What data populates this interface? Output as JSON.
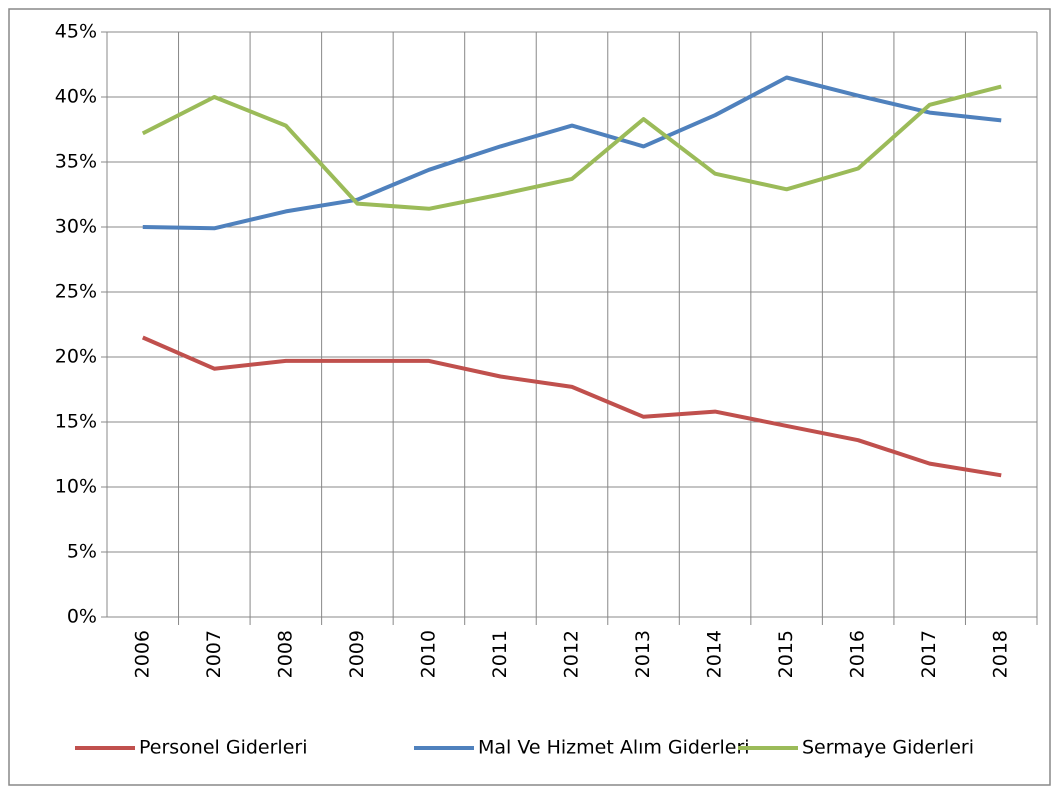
{
  "chart_data": {
    "type": "line",
    "categories": [
      "2006",
      "2007",
      "2008",
      "2009",
      "2010",
      "2011",
      "2012",
      "2013",
      "2014",
      "2015",
      "2016",
      "2017",
      "2018"
    ],
    "series": [
      {
        "name": "Personel Giderleri",
        "color": "#c0504d",
        "values": [
          21.5,
          19.1,
          19.7,
          19.7,
          19.7,
          18.5,
          17.7,
          15.4,
          15.8,
          14.7,
          13.6,
          11.8,
          10.9
        ]
      },
      {
        "name": "Mal Ve Hizmet Alım Giderleri",
        "color": "#4f81bd",
        "values": [
          30.0,
          29.9,
          31.2,
          32.1,
          34.4,
          36.2,
          37.8,
          36.2,
          38.6,
          41.5,
          40.1,
          38.8,
          38.2
        ]
      },
      {
        "name": "Sermaye Giderleri",
        "color": "#9bbb59",
        "values": [
          37.2,
          40.0,
          37.8,
          31.8,
          31.4,
          32.5,
          33.7,
          38.3,
          34.1,
          32.9,
          34.5,
          39.4,
          40.8
        ]
      }
    ],
    "ylim": [
      0,
      45
    ],
    "yticks": [
      {
        "value": 0,
        "label": "0%"
      },
      {
        "value": 5,
        "label": "5%"
      },
      {
        "value": 10,
        "label": "10%"
      },
      {
        "value": 15,
        "label": "15%"
      },
      {
        "value": 20,
        "label": "20%"
      },
      {
        "value": 25,
        "label": "25%"
      },
      {
        "value": 30,
        "label": "30%"
      },
      {
        "value": 35,
        "label": "35%"
      },
      {
        "value": 40,
        "label": "40%"
      },
      {
        "value": 45,
        "label": "45%"
      }
    ],
    "grid": true,
    "legend": "bottom"
  }
}
